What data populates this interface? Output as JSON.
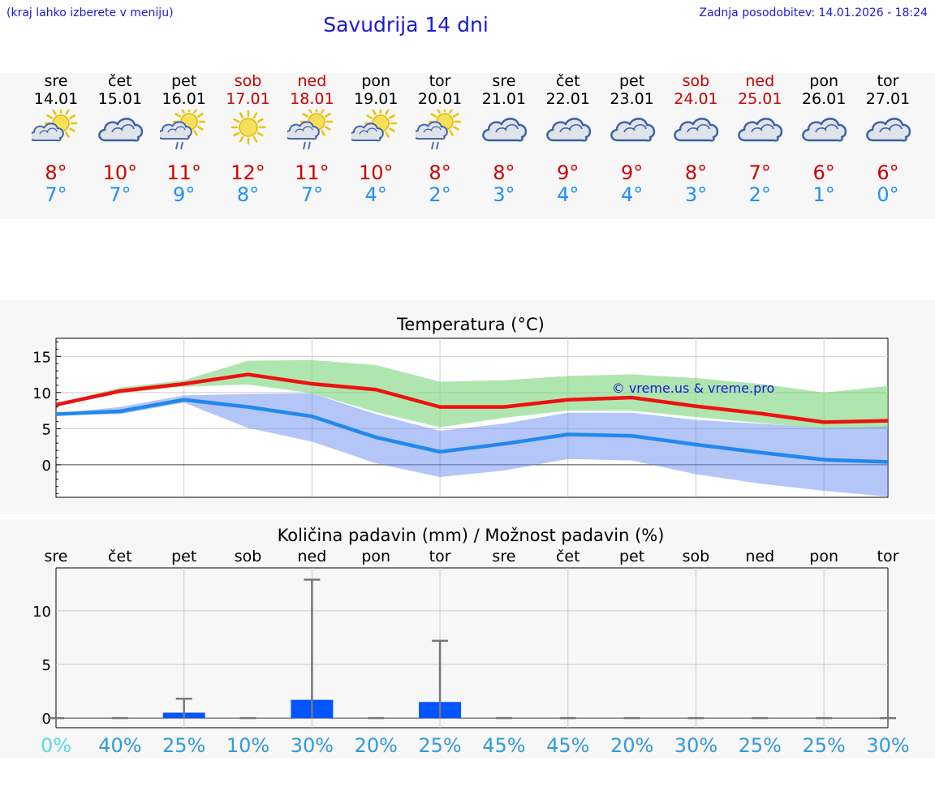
{
  "header": {
    "hint": "(kraj lahko izberete v meniju)",
    "title": "Savudrija 14 dni",
    "updated": "Zadnja posodobitev: 14.01.2026 - 18:24"
  },
  "days": [
    {
      "name": "sre",
      "date": "14.01",
      "weekend": false,
      "icon": "sun-cloud-icon",
      "tmax": "8°",
      "tmin": "7°"
    },
    {
      "name": "čet",
      "date": "15.01",
      "weekend": false,
      "icon": "cloud-icon",
      "tmax": "10°",
      "tmin": "7°"
    },
    {
      "name": "pet",
      "date": "16.01",
      "weekend": false,
      "icon": "sun-cloud-rain-icon",
      "tmax": "11°",
      "tmin": "9°"
    },
    {
      "name": "sob",
      "date": "17.01",
      "weekend": true,
      "icon": "sun-icon",
      "tmax": "12°",
      "tmin": "8°"
    },
    {
      "name": "ned",
      "date": "18.01",
      "weekend": true,
      "icon": "sun-cloud-rain-icon",
      "tmax": "11°",
      "tmin": "7°"
    },
    {
      "name": "pon",
      "date": "19.01",
      "weekend": false,
      "icon": "sun-cloud-icon",
      "tmax": "10°",
      "tmin": "4°"
    },
    {
      "name": "tor",
      "date": "20.01",
      "weekend": false,
      "icon": "sun-cloud-rain-icon",
      "tmax": "8°",
      "tmin": "2°"
    },
    {
      "name": "sre",
      "date": "21.01",
      "weekend": false,
      "icon": "cloud-icon",
      "tmax": "8°",
      "tmin": "3°"
    },
    {
      "name": "čet",
      "date": "22.01",
      "weekend": false,
      "icon": "cloud-icon",
      "tmax": "9°",
      "tmin": "4°"
    },
    {
      "name": "pet",
      "date": "23.01",
      "weekend": false,
      "icon": "cloud-icon",
      "tmax": "9°",
      "tmin": "4°"
    },
    {
      "name": "sob",
      "date": "24.01",
      "weekend": true,
      "icon": "cloud-icon",
      "tmax": "8°",
      "tmin": "3°"
    },
    {
      "name": "ned",
      "date": "25.01",
      "weekend": true,
      "icon": "cloud-icon",
      "tmax": "7°",
      "tmin": "2°"
    },
    {
      "name": "pon",
      "date": "26.01",
      "weekend": false,
      "icon": "cloud-icon",
      "tmax": "6°",
      "tmin": "1°"
    },
    {
      "name": "tor",
      "date": "27.01",
      "weekend": false,
      "icon": "cloud-icon",
      "tmax": "6°",
      "tmin": "0°"
    }
  ],
  "colors": {
    "max_line": "#ee1111",
    "min_line": "#2288ee",
    "max_band": "#7ed67e",
    "min_band": "#6a8ef0",
    "bar": "#0055ff",
    "whisker": "#777777",
    "pct_first": "#55dddd",
    "pct": "#3399dd"
  },
  "chart_data": [
    {
      "type": "line",
      "title": "Temperatura (°C)",
      "watermark": "© vreme.us & vreme.pro",
      "x": [
        "14.01",
        "15.01",
        "16.01",
        "17.01",
        "18.01",
        "19.01",
        "20.01",
        "21.01",
        "22.01",
        "23.01",
        "24.01",
        "25.01",
        "26.01",
        "27.01"
      ],
      "ylim": [
        -4.5,
        17.5
      ],
      "yticks": [
        0,
        5,
        10,
        15
      ],
      "series": [
        {
          "name": "max",
          "values": [
            8.3,
            10.2,
            11.2,
            12.5,
            11.2,
            10.4,
            8.0,
            8.0,
            9.0,
            9.3,
            8.1,
            7.1,
            5.9,
            6.1
          ]
        },
        {
          "name": "min",
          "values": [
            7.0,
            7.4,
            9.0,
            8.0,
            6.7,
            3.8,
            1.8,
            2.9,
            4.2,
            4.0,
            2.8,
            1.7,
            0.7,
            0.4
          ]
        }
      ],
      "bands": [
        {
          "name": "max-range",
          "lower": [
            8.2,
            9.9,
            10.8,
            11.1,
            9.9,
            7.3,
            5.2,
            6.5,
            7.5,
            7.5,
            6.6,
            5.8,
            5.0,
            5.1
          ],
          "upper": [
            8.4,
            10.7,
            11.7,
            14.4,
            14.5,
            13.8,
            11.5,
            11.7,
            12.3,
            12.5,
            12.0,
            11.2,
            10.0,
            10.9
          ]
        },
        {
          "name": "min-range",
          "lower": [
            6.9,
            7.0,
            8.6,
            5.1,
            3.2,
            0.2,
            -1.7,
            -0.8,
            0.8,
            0.6,
            -1.3,
            -2.6,
            -3.6,
            -4.4
          ],
          "upper": [
            7.1,
            8.0,
            9.6,
            9.8,
            9.9,
            7.0,
            4.7,
            5.7,
            7.2,
            7.2,
            6.2,
            5.7,
            5.1,
            5.3
          ]
        }
      ]
    },
    {
      "type": "bar",
      "title": "Količina padavin (mm) / Možnost padavin (%)",
      "categories": [
        "sre",
        "čet",
        "pet",
        "sob",
        "ned",
        "pon",
        "tor",
        "sre",
        "čet",
        "pet",
        "sob",
        "ned",
        "pon",
        "tor"
      ],
      "ylim": [
        -0.9,
        14
      ],
      "yticks": [
        0,
        5,
        10
      ],
      "values": [
        0,
        0,
        0.5,
        0,
        1.7,
        0,
        1.5,
        0,
        0,
        0,
        0,
        0,
        0,
        0
      ],
      "max": [
        0,
        0,
        1.8,
        0,
        12.9,
        0,
        7.2,
        0,
        0,
        0,
        0,
        0,
        0,
        0
      ],
      "probability": [
        "0%",
        "40%",
        "25%",
        "10%",
        "30%",
        "20%",
        "25%",
        "45%",
        "45%",
        "20%",
        "30%",
        "25%",
        "25%",
        "30%"
      ]
    }
  ]
}
